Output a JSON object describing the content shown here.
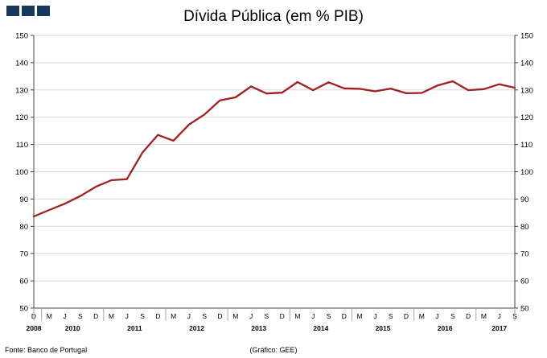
{
  "header": {
    "title": "Dívida Pública (em % PIB)"
  },
  "logo": {
    "color": "#17375E",
    "square_count": 3
  },
  "footer": {
    "source": "Fonte: Banco de Portugal",
    "credit": "(Gráfico: GEE)"
  },
  "chart_data": {
    "type": "line",
    "title": "Dívida Pública (em % PIB)",
    "xlabel": "",
    "ylabel": "",
    "ylim": [
      50,
      150
    ],
    "y_ticks": [
      50,
      60,
      70,
      80,
      90,
      100,
      110,
      120,
      130,
      140,
      150
    ],
    "grid": true,
    "legend": false,
    "x_tick_labels": [
      "D",
      "M",
      "J",
      "S",
      "D",
      "M",
      "J",
      "S",
      "D",
      "M",
      "J",
      "S",
      "D",
      "M",
      "J",
      "S",
      "D",
      "M",
      "J",
      "S",
      "D",
      "M",
      "J",
      "S",
      "D",
      "M",
      "J",
      "S",
      "D",
      "M",
      "J",
      "S"
    ],
    "years": [
      {
        "label": "2008",
        "from": 0,
        "to": 0
      },
      {
        "label": "2010",
        "from": 1,
        "to": 4
      },
      {
        "label": "2011",
        "from": 5,
        "to": 8
      },
      {
        "label": "2012",
        "from": 9,
        "to": 12
      },
      {
        "label": "2013",
        "from": 13,
        "to": 16
      },
      {
        "label": "2014",
        "from": 17,
        "to": 20
      },
      {
        "label": "2015",
        "from": 21,
        "to": 24
      },
      {
        "label": "2016",
        "from": 25,
        "to": 28
      },
      {
        "label": "2017",
        "from": 29,
        "to": 31
      }
    ],
    "series": [
      {
        "name": "Dívida Pública (em % PIB)",
        "values": [
          83.6,
          86.0,
          88.3,
          91.1,
          94.5,
          96.9,
          97.3,
          107.0,
          113.5,
          111.4,
          117.3,
          121.0,
          126.2,
          127.3,
          131.3,
          128.7,
          129.0,
          132.9,
          129.9,
          132.8,
          130.6,
          130.4,
          129.5,
          130.5,
          128.8,
          128.9,
          131.6,
          133.2,
          129.9,
          130.3,
          132.1,
          130.8
        ]
      }
    ],
    "colors": {
      "line": "#A32020",
      "grid": "#D9D9D9",
      "axis": "#404040",
      "separator": "#A6A6A6"
    }
  }
}
